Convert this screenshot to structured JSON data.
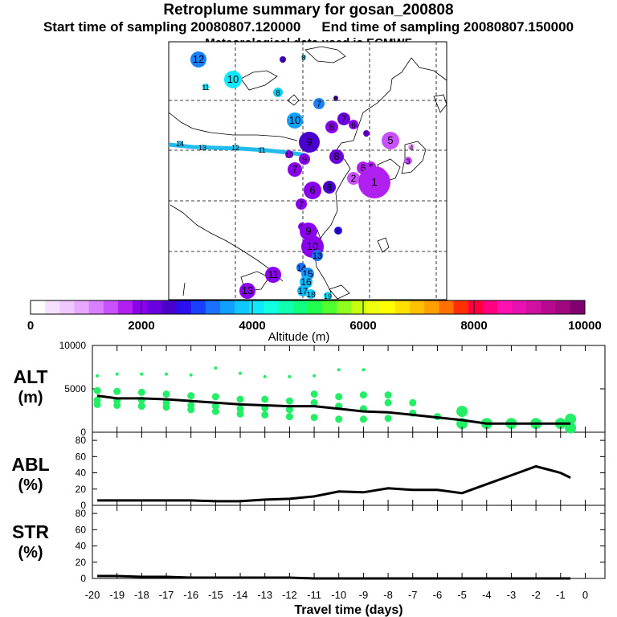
{
  "title": {
    "main": "Retroplume summary for gosan_200808",
    "start": "Start time of sampling 20080807.120000",
    "end": "End time of sampling 20080807.150000",
    "met": "Meteorological data used is ECMWF"
  },
  "colors": {
    "alt_points": "#22ee66",
    "line": "#000000",
    "track": "#22bbee",
    "colorbar": [
      "#ffffff",
      "#f7e0ff",
      "#f0c8ff",
      "#e8a8ff",
      "#d880ff",
      "#c850ff",
      "#b020f0",
      "#8a00ee",
      "#6a00dd",
      "#4a00cc",
      "#2a10ee",
      "#1a40ff",
      "#1a70ff",
      "#10a0ff",
      "#10c8ff",
      "#10e8ff",
      "#10ffe0",
      "#10ffb0",
      "#10ff80",
      "#20ff50",
      "#50ff30",
      "#90ff20",
      "#c8ff10",
      "#f0ff10",
      "#ffff00",
      "#ffe000",
      "#ffc000",
      "#ffa000",
      "#ff7000",
      "#ff3000",
      "#ff0040",
      "#ff0080",
      "#ff10b0",
      "#e810b0",
      "#d010a0",
      "#b80890",
      "#a00880",
      "#800070"
    ]
  },
  "colorbar": {
    "tick_labels": [
      "0",
      "2000",
      "4000",
      "6000",
      "8000",
      "10000"
    ],
    "label": "Altitude (m)"
  },
  "map_labels": [
    {
      "t": "12",
      "c": "#1a80ff"
    },
    {
      "t": "9",
      "c": "#4a00cc"
    },
    {
      "t": "8",
      "c": "#10c8ff"
    },
    {
      "t": "10",
      "c": "#10e8ff"
    },
    {
      "t": "11",
      "c": "#10e0ff"
    },
    {
      "t": "8",
      "c": "#10d0ff"
    },
    {
      "t": "7",
      "c": "#1a80ff"
    },
    {
      "t": "6",
      "c": "#4a00cc"
    },
    {
      "t": "10",
      "c": "#10a0ff"
    },
    {
      "t": "8",
      "c": "#8a00ee"
    },
    {
      "t": "7",
      "c": "#6a00dd"
    },
    {
      "t": "6",
      "c": "#8a00ee"
    },
    {
      "t": "5",
      "c": "#6a00dd"
    },
    {
      "t": "5",
      "c": "#c850ff"
    },
    {
      "t": "4",
      "c": "#e8a8ff"
    },
    {
      "t": "3",
      "c": "#c850ff"
    },
    {
      "t": "14",
      "c": "#22bbee"
    },
    {
      "t": "13",
      "c": "#22bbee"
    },
    {
      "t": "12",
      "c": "#22bbee"
    },
    {
      "t": "11",
      "c": "#22bbee"
    },
    {
      "t": "10",
      "c": "#8a00ee"
    },
    {
      "t": "9",
      "c": "#4a00cc"
    },
    {
      "t": "9",
      "c": "#8a00ee"
    },
    {
      "t": "8",
      "c": "#6a00dd"
    },
    {
      "t": "7",
      "c": "#8a00ee"
    },
    {
      "t": "6",
      "c": "#b020f0"
    },
    {
      "t": "5",
      "c": "#b020f0"
    },
    {
      "t": "4",
      "c": "#d880ff"
    },
    {
      "t": "2",
      "c": "#c850ff"
    },
    {
      "t": "1",
      "c": "#b020f0"
    },
    {
      "t": "6",
      "c": "#8a00ee"
    },
    {
      "t": "8",
      "c": "#4a00cc"
    },
    {
      "t": "7",
      "c": "#8a00ee"
    },
    {
      "t": "8",
      "c": "#8a00ee"
    },
    {
      "t": "9",
      "c": "#8a00ee"
    },
    {
      "t": "10",
      "c": "#8a00ee"
    },
    {
      "t": "13",
      "c": "#1a70ff"
    },
    {
      "t": "6",
      "c": "#2a10ee"
    },
    {
      "t": "11",
      "c": "#8a00ee"
    },
    {
      "t": "14",
      "c": "#1a70ff"
    },
    {
      "t": "15",
      "c": "#1a90ff"
    },
    {
      "t": "16",
      "c": "#10b8ff"
    },
    {
      "t": "17",
      "c": "#10b8ff"
    },
    {
      "t": "18",
      "c": "#10d0ff"
    },
    {
      "t": "19",
      "c": "#10e0ff"
    },
    {
      "t": "13",
      "c": "#8a00ee"
    }
  ],
  "chart_data": [
    {
      "type": "scatter",
      "name": "ALT",
      "ylabel": "ALT (m)",
      "ylim": [
        0,
        10000
      ],
      "yticks": [
        "10000",
        "5000",
        "0"
      ],
      "mean_line": {
        "x": [
          -19.8,
          -19,
          -18,
          -17,
          -16,
          -15,
          -14,
          -13,
          -12,
          -11,
          -10,
          -9,
          -8,
          -7,
          -6,
          -5,
          -4,
          -3,
          -2,
          -1,
          -0.6
        ],
        "y": [
          4200,
          3900,
          3900,
          3800,
          3600,
          3400,
          3200,
          3100,
          3000,
          3000,
          2700,
          2400,
          2300,
          2000,
          1700,
          1400,
          1000,
          1000,
          1000,
          1000,
          1000
        ]
      },
      "points": [
        [
          -19.8,
          6500
        ],
        [
          -19.8,
          4800
        ],
        [
          -19.8,
          3700
        ],
        [
          -19.8,
          3200
        ],
        [
          -19,
          6700
        ],
        [
          -19,
          4700
        ],
        [
          -19,
          3600
        ],
        [
          -19,
          3100
        ],
        [
          -18,
          6700
        ],
        [
          -18,
          4600
        ],
        [
          -18,
          3700
        ],
        [
          -18,
          3000
        ],
        [
          -17,
          6700
        ],
        [
          -17,
          4400
        ],
        [
          -17,
          3400
        ],
        [
          -17,
          2900
        ],
        [
          -16,
          6600
        ],
        [
          -16,
          4200
        ],
        [
          -16,
          3100
        ],
        [
          -16,
          2600
        ],
        [
          -15,
          7400
        ],
        [
          -15,
          4100
        ],
        [
          -15,
          3000
        ],
        [
          -15,
          2400
        ],
        [
          -14,
          6800
        ],
        [
          -14,
          3800
        ],
        [
          -14,
          2700
        ],
        [
          -14,
          2100
        ],
        [
          -13,
          6400
        ],
        [
          -13,
          3800
        ],
        [
          -13,
          2800
        ],
        [
          -13,
          2000
        ],
        [
          -12,
          6400
        ],
        [
          -12,
          3600
        ],
        [
          -12,
          2600
        ],
        [
          -12,
          1800
        ],
        [
          -11,
          6500
        ],
        [
          -11,
          4400
        ],
        [
          -11,
          3400
        ],
        [
          -11,
          1700
        ],
        [
          -10,
          7200
        ],
        [
          -10,
          4100
        ],
        [
          -10,
          3000
        ],
        [
          -10,
          1500
        ],
        [
          -9,
          7200
        ],
        [
          -9,
          4300
        ],
        [
          -9,
          2700
        ],
        [
          -9,
          1500
        ],
        [
          -8,
          4300
        ],
        [
          -8,
          3400
        ],
        [
          -8,
          1600
        ],
        [
          -7,
          3400
        ],
        [
          -7,
          2200
        ],
        [
          -6,
          1800
        ],
        [
          -5,
          2400
        ],
        [
          -5,
          1000
        ],
        [
          -4,
          1000
        ],
        [
          -3,
          1000
        ],
        [
          -2,
          1000
        ],
        [
          -1,
          1000
        ],
        [
          -0.6,
          1500
        ],
        [
          -0.6,
          500
        ]
      ]
    },
    {
      "type": "line",
      "name": "ABL",
      "ylabel": "ABL (%)",
      "ylim": [
        0,
        90
      ],
      "yticks": [
        "80",
        "60",
        "40",
        "20",
        "0"
      ],
      "x": [
        -19.8,
        -19,
        -18,
        -17,
        -16,
        -15,
        -14,
        -13,
        -12,
        -11,
        -10,
        -9,
        -8,
        -7,
        -6,
        -5,
        -4,
        -3,
        -2,
        -1.5,
        -1,
        -0.6
      ],
      "y": [
        6,
        6,
        6,
        6,
        6,
        5,
        5,
        7,
        8,
        11,
        17,
        16,
        21,
        19,
        19,
        15,
        26,
        37,
        48,
        44,
        40,
        34
      ]
    },
    {
      "type": "line",
      "name": "STR",
      "ylabel": "STR (%)",
      "ylim": [
        0,
        90
      ],
      "yticks": [
        "80",
        "60",
        "40",
        "20",
        "0"
      ],
      "x": [
        -19.8,
        -19,
        -18,
        -17,
        -16,
        -15,
        -14,
        -13,
        -12,
        -11,
        -10,
        -9,
        -8,
        -7,
        -6,
        -5,
        -4,
        -3,
        -2,
        -1,
        -0.6
      ],
      "y": [
        3,
        3,
        2,
        2,
        1,
        1,
        1,
        1,
        1,
        0,
        0,
        0,
        0,
        0,
        0,
        0,
        0,
        0,
        0,
        0,
        0
      ]
    }
  ],
  "xaxis": {
    "ticks": [
      "-20",
      "-19",
      "-18",
      "-17",
      "-16",
      "-15",
      "-14",
      "-13",
      "-12",
      "-11",
      "-10",
      "-9",
      "-8",
      "-7",
      "-6",
      "-5",
      "-4",
      "-3",
      "-2",
      "-1",
      "0"
    ],
    "label": "Travel time (days)"
  },
  "panels": {
    "alt": {
      "line1": "ALT",
      "line2": "(m)"
    },
    "abl": {
      "line1": "ABL",
      "line2": "(%)"
    },
    "str": {
      "line1": "STR",
      "line2": "(%)"
    }
  }
}
